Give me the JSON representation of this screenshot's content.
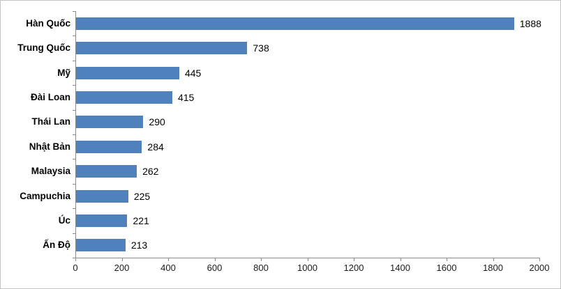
{
  "chart_data": {
    "type": "bar",
    "orientation": "horizontal",
    "title": "",
    "xlabel": "",
    "ylabel": "",
    "categories": [
      "Hàn Quốc",
      "Trung Quốc",
      "Mỹ",
      "Đài Loan",
      "Thái Lan",
      "Nhật Bản",
      "Malaysia",
      "Campuchia",
      "Úc",
      "Ấn Độ"
    ],
    "values": [
      1888,
      738,
      445,
      415,
      290,
      284,
      262,
      225,
      221,
      213
    ],
    "value_labels": [
      "1888",
      "738",
      "445",
      "415",
      "290",
      "284",
      "262",
      "225",
      "221",
      "213"
    ],
    "xlim": [
      0,
      2000
    ],
    "x_ticks": [
      0,
      200,
      400,
      600,
      800,
      1000,
      1200,
      1400,
      1600,
      1800,
      2000
    ],
    "x_tick_labels": [
      "0",
      "200",
      "400",
      "600",
      "800",
      "1000",
      "1200",
      "1400",
      "1600",
      "1800",
      "2000"
    ],
    "grid": false,
    "legend": false,
    "data_labels": true,
    "bar_color": "#4f81bd",
    "axis_color": "#8c8c8c",
    "text_color": "#000000"
  }
}
